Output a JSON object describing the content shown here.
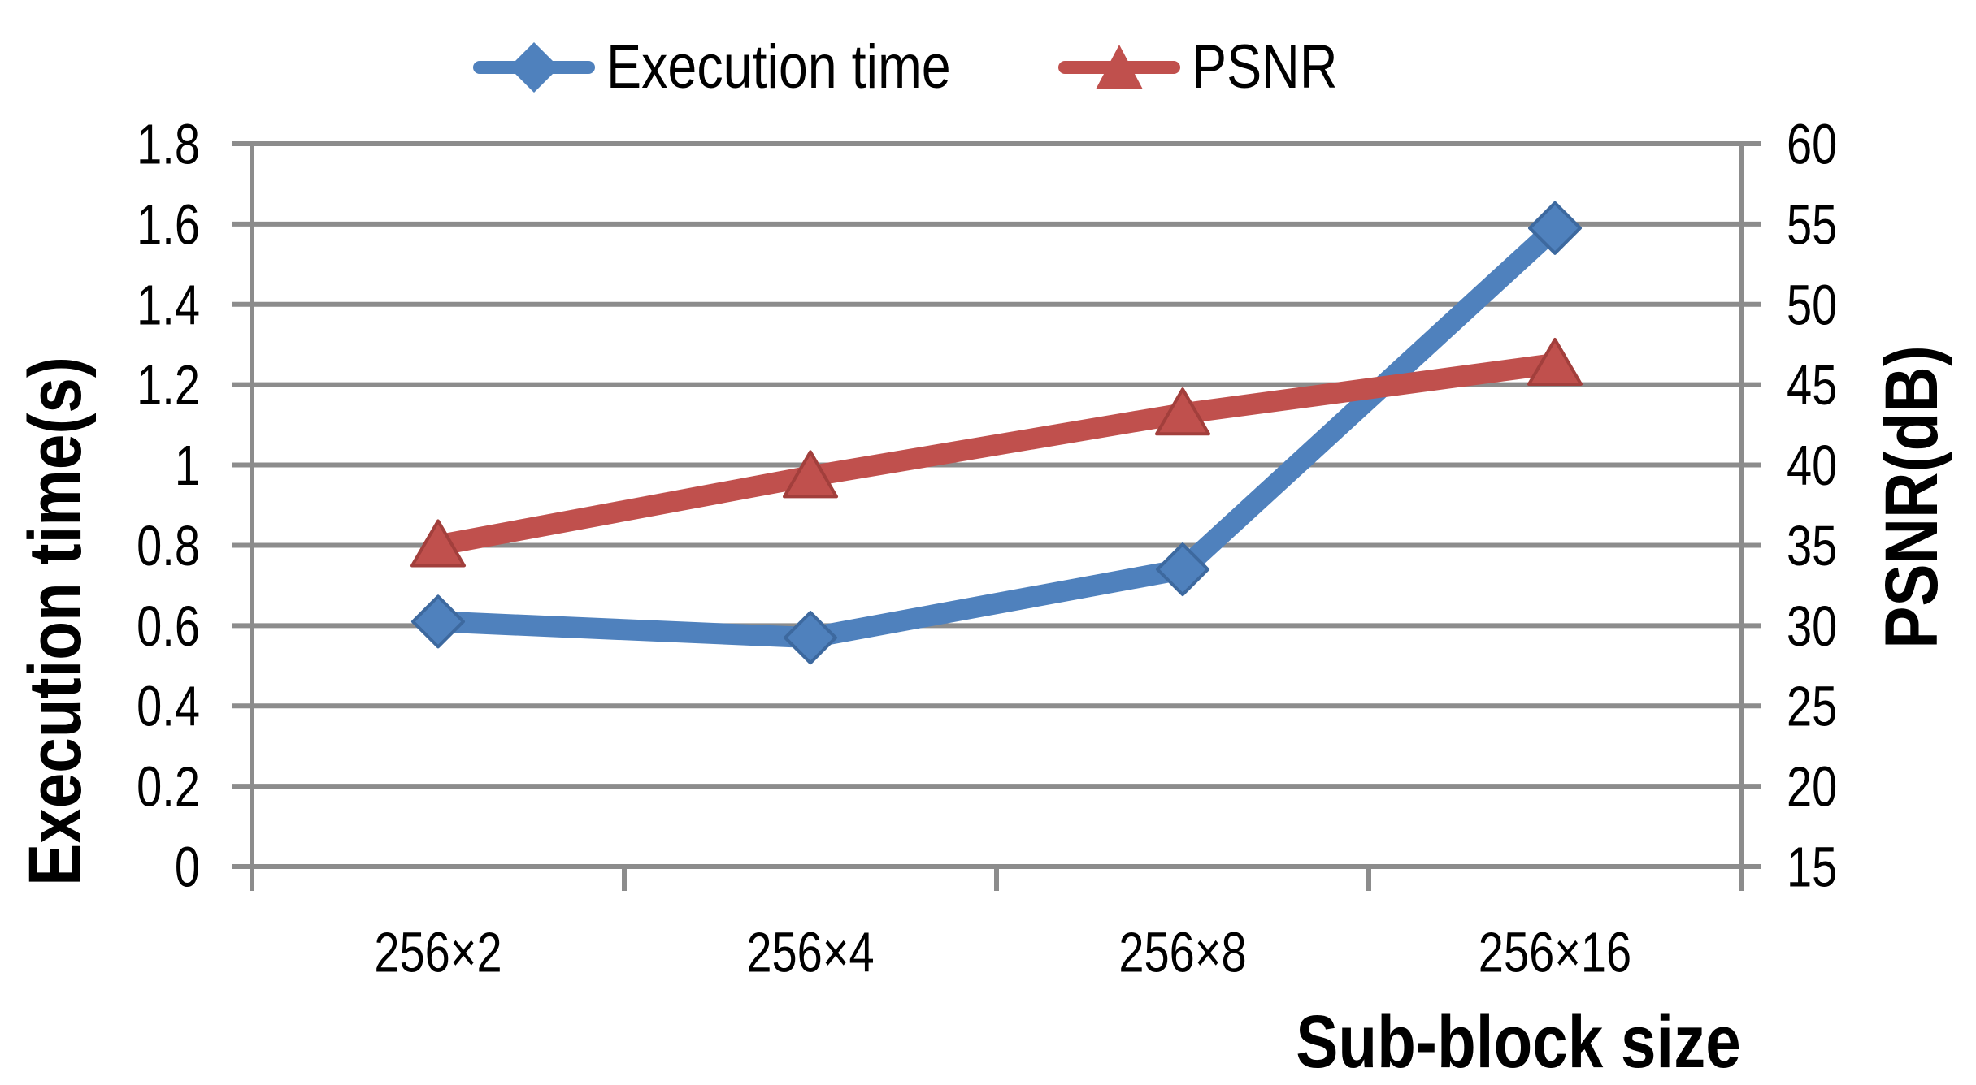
{
  "chart_data": {
    "type": "line",
    "title": "",
    "categories": [
      "256×2",
      "256×4",
      "256×8",
      "256×16"
    ],
    "series": [
      {
        "name": "Execution time",
        "axis": "left",
        "marker": "diamond",
        "color": "#4F81BD",
        "stroke": "#3D699F",
        "values": [
          0.61,
          0.57,
          0.74,
          1.59
        ]
      },
      {
        "name": "PSNR",
        "axis": "right",
        "marker": "triangle",
        "color": "#C0504D",
        "stroke": "#A23F3C",
        "values": [
          35,
          39.3,
          43.2,
          46.3
        ]
      }
    ],
    "x_axis": {
      "title": "Sub-block size",
      "tick_labels": [
        "256×2",
        "256×4",
        "256×8",
        "256×16"
      ]
    },
    "left_axis": {
      "title": "Execution time(s)",
      "min": 0,
      "max": 1.8,
      "step": 0.2,
      "tick_labels": [
        "1.8",
        "1.6",
        "1.4",
        "1.2",
        "1",
        "0.8",
        "0.6",
        "0.4",
        "0.2",
        "0"
      ]
    },
    "right_axis": {
      "title": "PSNR(dB)",
      "min": 15,
      "max": 60,
      "step": 5,
      "tick_labels": [
        "60",
        "55",
        "50",
        "45",
        "40",
        "35",
        "30",
        "25",
        "20",
        "15"
      ]
    },
    "grid": true,
    "legend_position": "top",
    "colors": {
      "gridline": "#8C8C8C",
      "axis_line": "#8C8C8C",
      "text": "#000000",
      "background": "#FFFFFF"
    }
  }
}
